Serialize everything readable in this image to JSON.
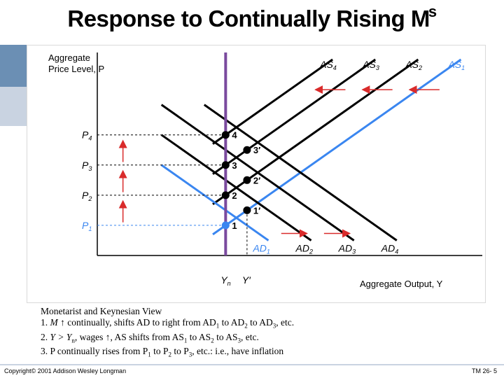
{
  "slide": {
    "title": "Response to Continually Rising M",
    "title_sup": "s",
    "footer_left": "Copyright© 2001 Addison Wesley Longman",
    "footer_right": "TM 26- 5"
  },
  "notes": {
    "heading": "Monetarist and Keynesian View",
    "line1_num": "1.",
    "line1_a": "M",
    "line1_b": "continually, shifts AD to right from AD",
    "line1_s1": "1",
    "line1_c": "to AD",
    "line1_s2": "2",
    "line1_d": "to AD",
    "line1_s3": "3",
    "line1_e": ", etc.",
    "line2_num": "2.",
    "line2_a": "Y > Y",
    "line2_sub": "n",
    "line2_b": ", wages",
    "line2_c": ", AS shifts from AS",
    "line2_s1": "1",
    "line2_d": "to AS",
    "line2_s2": "2",
    "line2_e": "to AS",
    "line2_s3": "3",
    "line2_f": ", etc.",
    "line3_num": "3.",
    "line3_a": "P continually rises from P",
    "line3_s1": "1",
    "line3_b": "to P",
    "line3_s2": "2",
    "line3_c": "to P",
    "line3_s3": "3",
    "line3_d": ", etc.: i.e., have inflation"
  },
  "colors": {
    "ad1": "#3a86f0",
    "as1": "#3a86f0",
    "black": "#000000",
    "vertical": "#7a4a9e",
    "arrow": "#d92b2b",
    "point": "#000000"
  },
  "chart_data": {
    "type": "line",
    "ylabel_line1": "Aggregate",
    "ylabel_line2": "Price Level, P",
    "xlabel": "Aggregate Output, Y",
    "x_ticks": [
      {
        "label": "Y",
        "sub": "n",
        "x": 3.0
      },
      {
        "label": "Y′",
        "sub": "",
        "x": 3.5
      }
    ],
    "y_ticks": [
      {
        "label": "P",
        "sub": "1",
        "y": 1.0,
        "color": "#3a86f0"
      },
      {
        "label": "P",
        "sub": "2",
        "y": 2.0,
        "color": "#000000"
      },
      {
        "label": "P",
        "sub": "3",
        "y": 3.0,
        "color": "#000000"
      },
      {
        "label": "P",
        "sub": "4",
        "y": 4.0,
        "color": "#000000"
      }
    ],
    "xlim": [
      0,
      9
    ],
    "ylim": [
      0,
      6.5
    ],
    "vertical_line_x": 3.0,
    "ad_series": [
      {
        "name": "AD",
        "sub": "1",
        "x1": 1.5,
        "y1": 3.0,
        "x2": 4.0,
        "y2": 0.5,
        "color": "#3a86f0"
      },
      {
        "name": "AD",
        "sub": "2",
        "x1": 1.5,
        "y1": 4.0,
        "x2": 5.0,
        "y2": 0.5,
        "color": "#000000"
      },
      {
        "name": "AD",
        "sub": "3",
        "x1": 1.5,
        "y1": 5.0,
        "x2": 6.0,
        "y2": 0.5,
        "color": "#000000"
      },
      {
        "name": "AD",
        "sub": "4",
        "x1": 2.5,
        "y1": 5.0,
        "x2": 7.0,
        "y2": 0.5,
        "color": "#000000"
      }
    ],
    "as_series": [
      {
        "name": "AS",
        "sub": "1",
        "x1": 3.0,
        "y1": 1.0,
        "x2": 8.5,
        "y2": 6.5,
        "color": "#3a86f0",
        "extend_to_x": 2.7
      },
      {
        "name": "AS",
        "sub": "2",
        "x1": 3.0,
        "y1": 2.0,
        "x2": 7.5,
        "y2": 6.5,
        "color": "#000000",
        "extend_to_x": 2.7
      },
      {
        "name": "AS",
        "sub": "3",
        "x1": 3.0,
        "y1": 3.0,
        "x2": 6.5,
        "y2": 6.5,
        "color": "#000000",
        "extend_to_x": 2.7
      },
      {
        "name": "AS",
        "sub": "4",
        "x1": 3.0,
        "y1": 4.0,
        "x2": 5.5,
        "y2": 6.5,
        "color": "#000000",
        "extend_to_x": 2.7
      }
    ],
    "points": [
      {
        "label": "1",
        "x": 3.0,
        "y": 1.0,
        "color": "#3a86f0"
      },
      {
        "label": "2",
        "x": 3.0,
        "y": 2.0,
        "color": "#000000"
      },
      {
        "label": "3",
        "x": 3.0,
        "y": 3.0,
        "color": "#000000"
      },
      {
        "label": "4",
        "x": 3.0,
        "y": 4.0,
        "color": "#000000"
      },
      {
        "label": "1′",
        "x": 3.5,
        "y": 1.5,
        "color": "#000000"
      },
      {
        "label": "2′",
        "x": 3.5,
        "y": 2.5,
        "color": "#000000"
      },
      {
        "label": "3′",
        "x": 3.5,
        "y": 3.5,
        "color": "#000000"
      }
    ],
    "arrows_left": [
      {
        "y": 5.5,
        "x_from": 8.0,
        "x_to": 7.3
      },
      {
        "y": 5.5,
        "x_from": 6.9,
        "x_to": 6.2
      },
      {
        "y": 5.5,
        "x_from": 5.8,
        "x_to": 5.1
      }
    ],
    "arrows_right_ad": [
      {
        "x_from": 4.3,
        "x_to": 4.9,
        "y": 0.5
      },
      {
        "x_from": 5.3,
        "x_to": 5.9,
        "y": 0.5
      }
    ],
    "arrows_up_price": [
      {
        "x": 0.6,
        "y_from": 1.1,
        "y_to": 1.9
      },
      {
        "x": 0.6,
        "y_from": 2.1,
        "y_to": 2.9
      },
      {
        "x": 0.6,
        "y_from": 3.1,
        "y_to": 3.9
      }
    ]
  }
}
